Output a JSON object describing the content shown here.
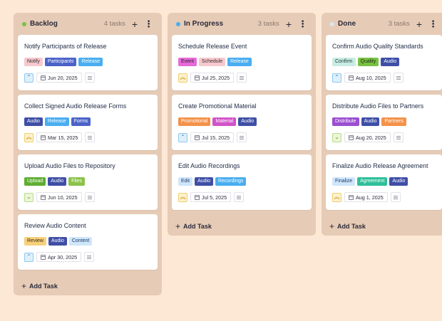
{
  "columns": [
    {
      "title": "Backlog",
      "count": "4 tasks",
      "dot_color": "#7ac143",
      "add_label": "Add Task",
      "cards": [
        {
          "title": "Notify Participants of Release",
          "tags": [
            {
              "label": "Notify",
              "bg": "#f6c9cf",
              "fg": "#3a2a2a"
            },
            {
              "label": "Participants",
              "bg": "#4b63c8",
              "fg": "#ffffff"
            },
            {
              "label": "Release",
              "bg": "#4aaef0",
              "fg": "#ffffff"
            }
          ],
          "priority": "low",
          "priority_icon": "chevron-up-icon",
          "date": "Jun 20, 2025"
        },
        {
          "title": "Collect Signed Audio Release Forms",
          "tags": [
            {
              "label": "Audio",
              "bg": "#3f4fa6",
              "fg": "#ffffff"
            },
            {
              "label": "Release",
              "bg": "#4aaef0",
              "fg": "#ffffff"
            },
            {
              "label": "Forms",
              "bg": "#4b63c8",
              "fg": "#ffffff"
            }
          ],
          "priority": "high",
          "priority_icon": "double-chevron-up-icon",
          "date": "Mar 15, 2025"
        },
        {
          "title": "Upload Audio Files to Repository",
          "tags": [
            {
              "label": "Upload",
              "bg": "#5fae32",
              "fg": "#ffffff"
            },
            {
              "label": "Audio",
              "bg": "#3f4fa6",
              "fg": "#ffffff"
            },
            {
              "label": "Files",
              "bg": "#8bc34a",
              "fg": "#ffffff"
            }
          ],
          "priority": "lowest",
          "priority_icon": "chevron-down-icon",
          "date": "Jun 10, 2025"
        },
        {
          "title": "Review Audio Content",
          "tags": [
            {
              "label": "Review",
              "bg": "#f7d07a",
              "fg": "#3a2a10"
            },
            {
              "label": "Audio",
              "bg": "#3f4fa6",
              "fg": "#ffffff"
            },
            {
              "label": "Content",
              "bg": "#cfe6fb",
              "fg": "#1e3a66"
            }
          ],
          "priority": "low",
          "priority_icon": "chevron-up-icon",
          "date": "Apr 30, 2025"
        }
      ]
    },
    {
      "title": "In Progress",
      "count": "3 tasks",
      "dot_color": "#4aaef0",
      "add_label": "Add Task",
      "cards": [
        {
          "title": "Schedule Release Event",
          "tags": [
            {
              "label": "Event",
              "bg": "#e56bd6",
              "fg": "#2a1a2a"
            },
            {
              "label": "Schedule",
              "bg": "#f6c9cf",
              "fg": "#3a2a2a"
            },
            {
              "label": "Release",
              "bg": "#4aaef0",
              "fg": "#ffffff"
            }
          ],
          "priority": "high",
          "priority_icon": "double-chevron-up-icon",
          "date": "Jul 25, 2025"
        },
        {
          "title": "Create Promotional Material",
          "tags": [
            {
              "label": "Promotional",
              "bg": "#f4924a",
              "fg": "#ffffff"
            },
            {
              "label": "Material",
              "bg": "#d152c9",
              "fg": "#ffffff"
            },
            {
              "label": "Audio",
              "bg": "#3f4fa6",
              "fg": "#ffffff"
            }
          ],
          "priority": "low",
          "priority_icon": "chevron-up-icon",
          "date": "Jul 15, 2025"
        },
        {
          "title": "Edit Audio Recordings",
          "tags": [
            {
              "label": "Edit",
              "bg": "#cfe6fb",
              "fg": "#1e3a66"
            },
            {
              "label": "Audio",
              "bg": "#3f4fa6",
              "fg": "#ffffff"
            },
            {
              "label": "Recordings",
              "bg": "#4aaef0",
              "fg": "#ffffff"
            }
          ],
          "priority": "high",
          "priority_icon": "double-chevron-up-icon",
          "date": "Jul 5, 2025"
        }
      ]
    },
    {
      "title": "Done",
      "count": "3 tasks",
      "dot_color": "#d8e6f4",
      "add_label": "Add Task",
      "cards": [
        {
          "title": "Confirm Audio Quality Standards",
          "tags": [
            {
              "label": "Confirm",
              "bg": "#c8ece3",
              "fg": "#1a3a34"
            },
            {
              "label": "Quality",
              "bg": "#7ac143",
              "fg": "#1a2a10"
            },
            {
              "label": "Audio",
              "bg": "#3f4fa6",
              "fg": "#ffffff"
            }
          ],
          "priority": "low",
          "priority_icon": "chevron-up-icon",
          "date": "Aug 10, 2025"
        },
        {
          "title": "Distribute Audio Files to Partners",
          "tags": [
            {
              "label": "Distribute",
              "bg": "#9b4fd0",
              "fg": "#ffffff"
            },
            {
              "label": "Audio",
              "bg": "#3f4fa6",
              "fg": "#ffffff"
            },
            {
              "label": "Partners",
              "bg": "#f4924a",
              "fg": "#ffffff"
            }
          ],
          "priority": "lowest",
          "priority_icon": "chevron-down-icon",
          "date": "Aug 20, 2025"
        },
        {
          "title": "Finalize Audio Release Agreement",
          "tags": [
            {
              "label": "Finalize",
              "bg": "#cfe6fb",
              "fg": "#1e3a66"
            },
            {
              "label": "Agreement",
              "bg": "#2fbf9a",
              "fg": "#ffffff"
            },
            {
              "label": "Audio",
              "bg": "#3f4fa6",
              "fg": "#ffffff"
            }
          ],
          "priority": "high",
          "priority_icon": "double-chevron-up-icon",
          "date": "Aug 1, 2025"
        }
      ]
    }
  ],
  "priority_styles": {
    "low": {
      "glyph": "⌃",
      "bg": "#dff0fb",
      "border": "#8ec8ee",
      "color": "#2a78c0"
    },
    "high": {
      "glyph": "︽",
      "bg": "#fdf1cf",
      "border": "#f1cf6a",
      "color": "#c58a00"
    },
    "lowest": {
      "glyph": "⌄",
      "bg": "#eaf6d7",
      "border": "#b7dd8a",
      "color": "#5c9a22"
    }
  }
}
